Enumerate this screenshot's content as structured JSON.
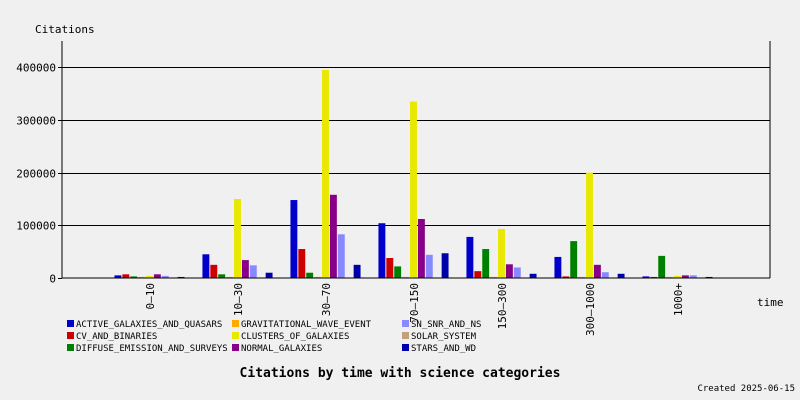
{
  "chart_data": {
    "type": "bar",
    "title": "Citations by time with science categories",
    "ylabel": "Citations",
    "xlabel": "time",
    "categories": [
      "0–10",
      "10–30",
      "30–70",
      "70–150",
      "150–300",
      "300–1000",
      "1000+"
    ],
    "ylim": [
      0,
      450000
    ],
    "yticks": [
      0,
      100000,
      200000,
      300000,
      400000
    ],
    "ytick_labels": [
      "0",
      "100000",
      "200000",
      "300000",
      "400000"
    ],
    "grid": true,
    "legend_position": "bottom",
    "series": [
      {
        "name": "ACTIVE_GALAXIES_AND_QUASARS",
        "color": "#0000cc",
        "values": [
          5000,
          45000,
          148000,
          104000,
          78000,
          40000,
          3000
        ]
      },
      {
        "name": "CV_AND_BINARIES",
        "color": "#cc0000",
        "values": [
          7000,
          25000,
          55000,
          38000,
          13000,
          3000,
          2000
        ]
      },
      {
        "name": "DIFFUSE_EMISSION_AND_SURVEYS",
        "color": "#008000",
        "values": [
          3000,
          7000,
          10000,
          22000,
          55000,
          70000,
          42000
        ]
      },
      {
        "name": "GRAVITATIONAL_WAVE_EVENT",
        "color": "#ffaa00",
        "values": [
          2000,
          2000,
          2000,
          2000,
          2000,
          2000,
          2000
        ]
      },
      {
        "name": "CLUSTERS_OF_GALAXIES",
        "color": "#e8e800",
        "values": [
          4000,
          150000,
          395000,
          335000,
          93000,
          200000,
          4000
        ]
      },
      {
        "name": "NORMAL_GALAXIES",
        "color": "#880088",
        "values": [
          7000,
          34000,
          158000,
          112000,
          26000,
          25000,
          5000
        ]
      },
      {
        "name": "SN_SNR_AND_NS",
        "color": "#8888ff",
        "values": [
          4000,
          24000,
          83000,
          44000,
          20000,
          11000,
          5000
        ]
      },
      {
        "name": "SOLAR_SYSTEM",
        "color": "#c0a080",
        "values": [
          1000,
          1000,
          1000,
          1000,
          1000,
          1000,
          1000
        ]
      },
      {
        "name": "STARS_AND_WD",
        "color": "#0000aa",
        "values": [
          2000,
          10000,
          25000,
          47000,
          8000,
          8000,
          2000
        ]
      }
    ]
  },
  "footer": {
    "created": "Created 2025-06-15"
  }
}
